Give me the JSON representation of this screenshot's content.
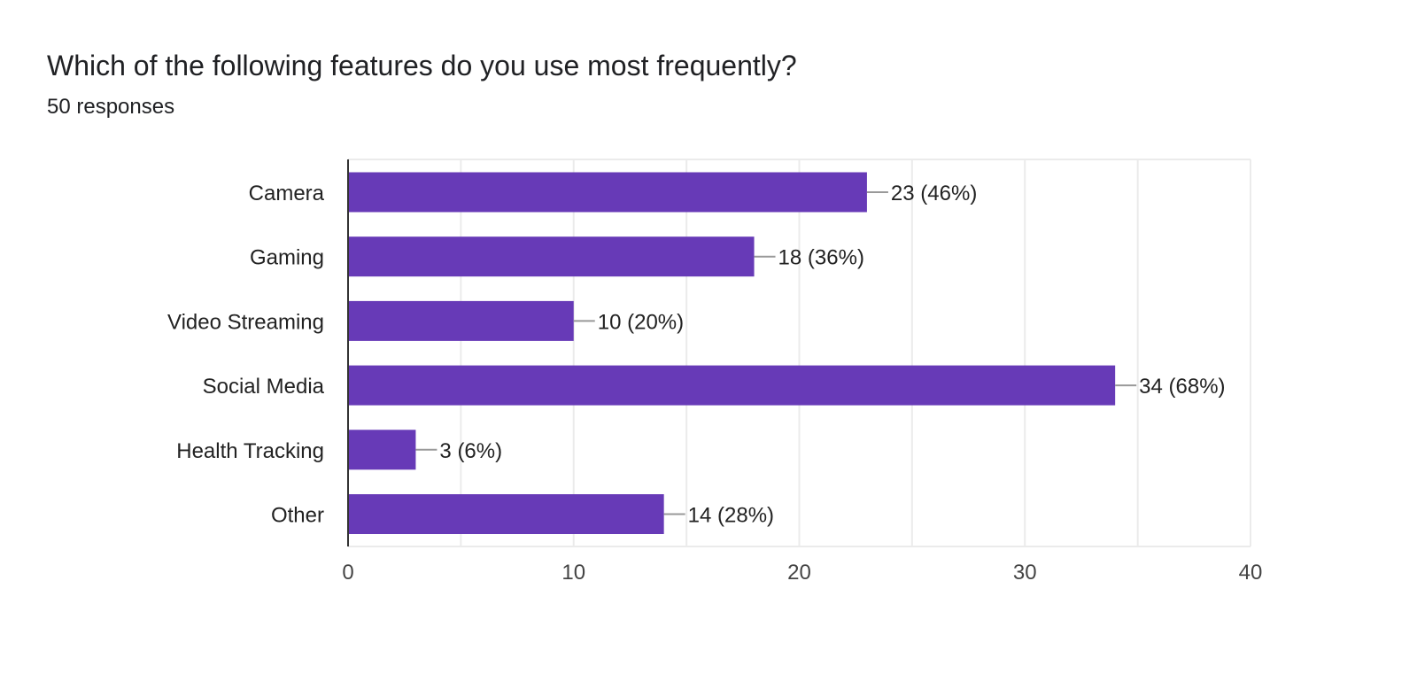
{
  "question": {
    "title": "Which of the following features do you use most frequently?",
    "responses": "50 responses"
  },
  "colors": {
    "bar": "#673ab7",
    "grid": "#ebebeb",
    "axis": "#333333",
    "leader": "#999999"
  },
  "chart_data": {
    "type": "bar",
    "orientation": "horizontal",
    "categories": [
      "Camera",
      "Gaming",
      "Video Streaming",
      "Social Media",
      "Health Tracking",
      "Other"
    ],
    "values": [
      23,
      18,
      10,
      34,
      3,
      14
    ],
    "value_labels": [
      "23 (46%)",
      "18 (36%)",
      "10 (20%)",
      "34 (68%)",
      "3 (6%)",
      "14 (28%)"
    ],
    "xlim": [
      0,
      40
    ],
    "x_ticks": [
      "0",
      "10",
      "20",
      "30",
      "40"
    ],
    "grid": true
  }
}
